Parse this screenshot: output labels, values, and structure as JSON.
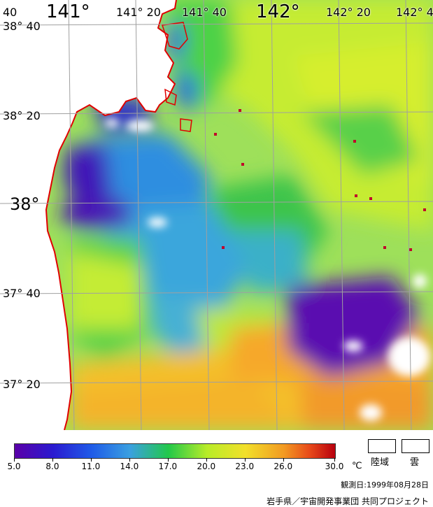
{
  "map": {
    "longitude_labels": [
      "40",
      "141°",
      "141° 20",
      "141° 40",
      "142°",
      "142° 20",
      "142° 4"
    ],
    "latitude_labels": [
      "38° 40",
      "38° 20",
      "38°",
      "37° 40",
      "37° 20"
    ]
  },
  "legend": {
    "ticks": [
      "5.0",
      "8.0",
      "11.0",
      "14.0",
      "17.0",
      "20.0",
      "23.0",
      "26.0",
      "30.0"
    ],
    "unit": "℃",
    "land_label": "陸域",
    "cloud_label": "雲"
  },
  "footer": {
    "date": "観測日:1999年08月28日",
    "credit": "岩手県／宇宙開発事業団 共同プロジェクト"
  },
  "colors": {
    "land": "#ffffff",
    "coastline": "#e00000",
    "grid": "#a0a0a0"
  }
}
